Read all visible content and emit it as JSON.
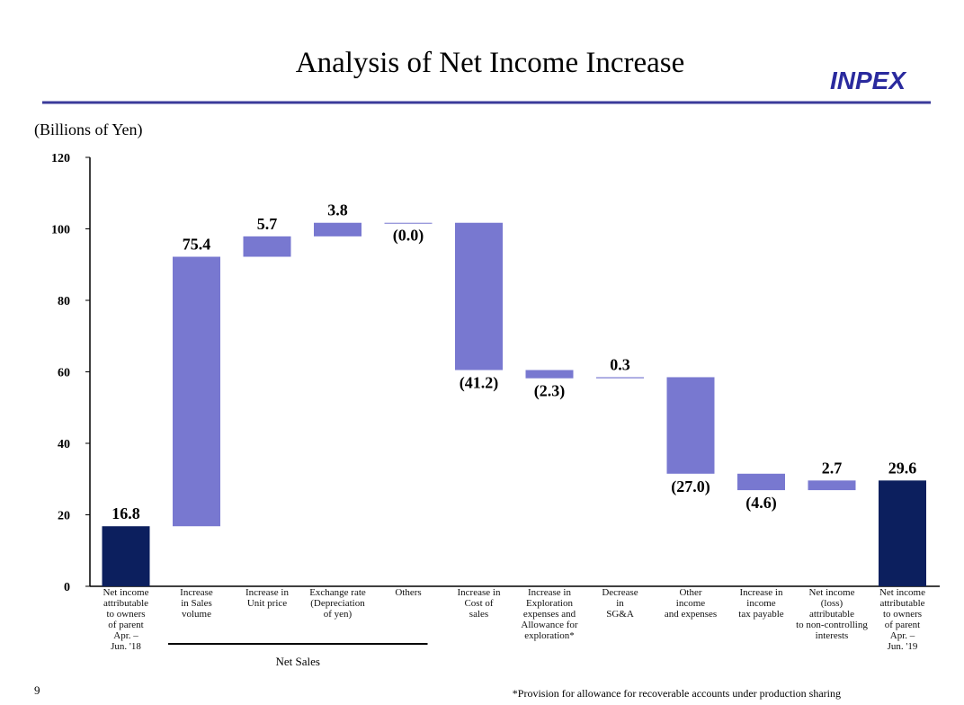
{
  "header": {
    "title": "Analysis of Net Income Increase",
    "logo": "INPEX"
  },
  "page_number": "9",
  "footnote": "*Provision for allowance for recoverable accounts under production sharing",
  "chart_data": {
    "type": "waterfall",
    "y_label": "(Billions of Yen)",
    "categories": [
      "Net income\nattributable\nto owners\nof parent\nApr. –\nJun. '18",
      "Increase\nin Sales\nvolume",
      "Increase in\nUnit price",
      "Exchange rate\n(Depreciation\nof yen)",
      "Others",
      "Increase in\nCost of\nsales",
      "Increase in\nExploration\nexpenses and\nAllowance for\nexploration*",
      "Decrease\nin\nSG&A",
      "Other\nincome\nand expenses",
      "Increase in\nincome\ntax payable",
      "Net income\n(loss)\nattributable\nto non-controlling\ninterests",
      "Net income\nattributable\nto owners\nof parent\nApr. –\nJun. '19"
    ],
    "values": [
      16.8,
      75.4,
      5.7,
      3.8,
      0,
      -41.2,
      -2.3,
      0.3,
      -27.0,
      -4.6,
      2.7,
      29.6
    ],
    "value_labels": [
      "16.8",
      "75.4",
      "5.7",
      "3.8",
      "(0.0)",
      "(41.2)",
      "(2.3)",
      "0.3",
      "(27.0)",
      "(4.6)",
      "2.7",
      "29.6"
    ],
    "is_total": [
      true,
      false,
      false,
      false,
      false,
      false,
      false,
      false,
      false,
      false,
      false,
      true
    ],
    "total_color": "#0c1f5e",
    "delta_color": "#7878d0",
    "ylim": [
      0,
      120
    ],
    "yticks": [
      0,
      20,
      40,
      60,
      80,
      100,
      120
    ],
    "group": {
      "label": "Net Sales",
      "from": 1,
      "to": 4
    }
  }
}
